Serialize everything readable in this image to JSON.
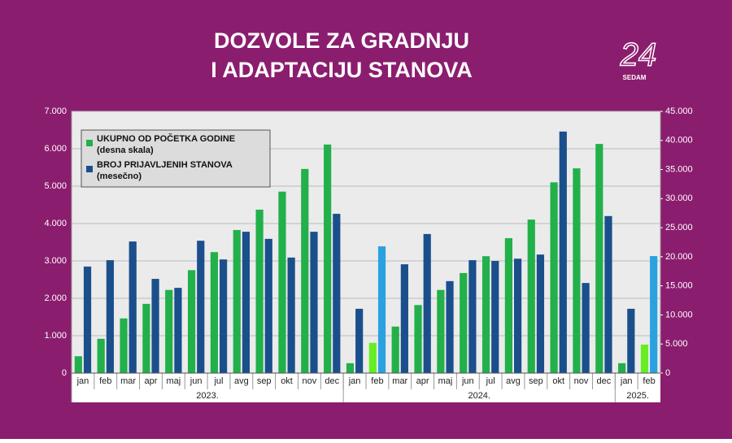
{
  "chart_data": {
    "type": "bar",
    "title": [
      "DOZVOLE ZA GRADNJU",
      "I ADAPTACIJU STANOVA"
    ],
    "logo": {
      "number": "24",
      "label": "SEDAM"
    },
    "categories": [
      "jan",
      "feb",
      "mar",
      "apr",
      "maj",
      "jun",
      "jul",
      "avg",
      "sep",
      "okt",
      "nov",
      "dec",
      "jan",
      "feb",
      "mar",
      "apr",
      "maj",
      "jun",
      "jul",
      "avg",
      "sep",
      "okt",
      "nov",
      "dec",
      "jan",
      "feb"
    ],
    "groups": [
      "2023.",
      "2024.",
      "2025."
    ],
    "series": [
      {
        "name": "UKUPNO OD POČETKA GODINE",
        "name_note": "(desna skala)",
        "axis": "y2",
        "color": "#22b04a",
        "colors": [
          "#22b04a",
          "#22b04a",
          "#22b04a",
          "#22b04a",
          "#22b04a",
          "#22b04a",
          "#22b04a",
          "#22b04a",
          "#22b04a",
          "#22b04a",
          "#22b04a",
          "#22b04a",
          "#22b04a",
          "#66ee22",
          "#22b04a",
          "#22b04a",
          "#22b04a",
          "#22b04a",
          "#22b04a",
          "#22b04a",
          "#22b04a",
          "#22b04a",
          "#22b04a",
          "#22b04a",
          "#22b04a",
          "#66ee22"
        ],
        "values": [
          2900,
          5900,
          9400,
          11900,
          14300,
          17700,
          20800,
          24600,
          28100,
          31200,
          35100,
          39300,
          1700,
          5200,
          8000,
          11700,
          14300,
          17200,
          20100,
          23200,
          26400,
          32800,
          35200,
          39400,
          1700,
          4900
        ]
      },
      {
        "name": "BROJ PRIJAVLJENIH STANOVA",
        "name_note": "(mesečno)",
        "color": "#1a4f8c",
        "colors": [
          "#1a4f8c",
          "#1a4f8c",
          "#1a4f8c",
          "#1a4f8c",
          "#1a4f8c",
          "#1a4f8c",
          "#1a4f8c",
          "#1a4f8c",
          "#1a4f8c",
          "#1a4f8c",
          "#1a4f8c",
          "#1a4f8c",
          "#1a4f8c",
          "#2aa2e0",
          "#1a4f8c",
          "#1a4f8c",
          "#1a4f8c",
          "#1a4f8c",
          "#1a4f8c",
          "#1a4f8c",
          "#1a4f8c",
          "#1a4f8c",
          "#1a4f8c",
          "#1a4f8c",
          "#1a4f8c",
          "#2aa2e0"
        ],
        "values": [
          2850,
          3020,
          3520,
          2520,
          2280,
          3540,
          3040,
          3780,
          3590,
          3090,
          3780,
          4260,
          1720,
          3390,
          2910,
          3720,
          2460,
          3020,
          3000,
          3060,
          3170,
          6460,
          2410,
          4200,
          1720,
          3130
        ]
      }
    ],
    "ylim": [
      0,
      7000
    ],
    "yticks": [
      0,
      {
        "value": 1000,
        "label": "1.000"
      },
      {
        "value": 2000,
        "label": "2.000"
      },
      {
        "value": 3000,
        "label": "3.000"
      },
      {
        "value": 4000,
        "label": "4.000"
      },
      {
        "value": 5000,
        "label": "5.000"
      },
      {
        "value": 6000,
        "label": "6.000"
      },
      {
        "value": 7000,
        "label": "7.000"
      }
    ],
    "y2lim": [
      0,
      45000
    ],
    "y2ticks": [
      0,
      {
        "value": 5000,
        "label": "5.000"
      },
      {
        "value": 10000,
        "label": "10.000"
      },
      {
        "value": 15000,
        "label": "15.000"
      },
      {
        "value": 20000,
        "label": "20.000"
      },
      {
        "value": 25000,
        "label": "25.000"
      },
      {
        "value": 30000,
        "label": "30.000"
      },
      {
        "value": 35000,
        "label": "35.000"
      },
      {
        "value": 40000,
        "label": "40.000"
      },
      {
        "value": 45000,
        "label": "45.000"
      }
    ],
    "grid": true,
    "background": "#8b1d6f"
  }
}
